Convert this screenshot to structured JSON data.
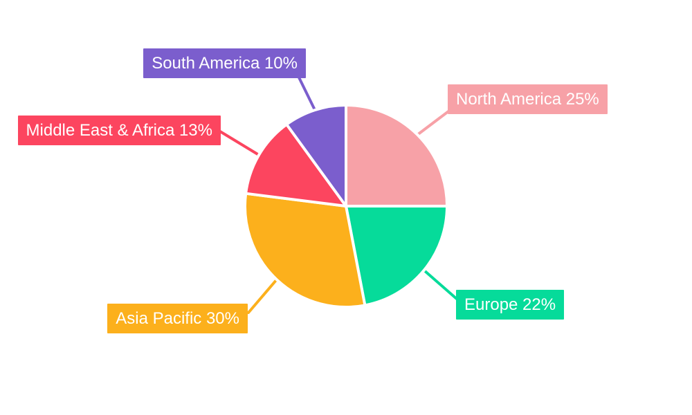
{
  "chart_data": {
    "type": "pie",
    "title": "",
    "background": "#FFFFFF",
    "label_text_color": "#FFFFFF",
    "slice_gap_color": "#FFFFFF",
    "start_angle": "top",
    "direction": "clockwise",
    "legend_position": "callout-labels",
    "categories": [
      "North America",
      "Europe",
      "Asia Pacific",
      "Middle East & Africa",
      "South America"
    ],
    "values": [
      25,
      22,
      30,
      13,
      10
    ],
    "unit": "%",
    "slices": [
      {
        "label": "North America",
        "value": 25,
        "display": "North America 25%",
        "color": "#F7A1A7"
      },
      {
        "label": "Europe",
        "value": 22,
        "display": "Europe 22%",
        "color": "#06DB9A"
      },
      {
        "label": "Asia Pacific",
        "value": 30,
        "display": "Asia Pacific 30%",
        "color": "#FCB01C"
      },
      {
        "label": "Middle East & Africa",
        "value": 13,
        "display": "Middle East & Africa 13%",
        "color": "#FC455F"
      },
      {
        "label": "South America",
        "value": 10,
        "display": "South America 10%",
        "color": "#7B5ECD"
      }
    ]
  }
}
